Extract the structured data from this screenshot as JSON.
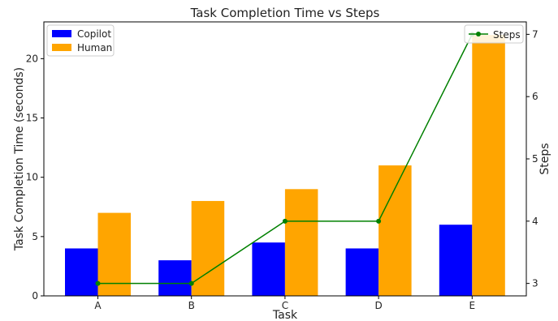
{
  "chart_data": {
    "type": "bar",
    "title": "Task Completion Time vs Steps",
    "xlabel": "Task",
    "ylabel": "Task Completion Time (seconds)",
    "y2label": "Steps",
    "categories": [
      "A",
      "B",
      "C",
      "D",
      "E"
    ],
    "series": [
      {
        "name": "Copilot",
        "type": "bar",
        "axis": "left",
        "color": "#0000ff",
        "values": [
          4,
          3,
          4.5,
          4,
          6
        ]
      },
      {
        "name": "Human",
        "type": "bar",
        "axis": "left",
        "color": "#ffa500",
        "values": [
          7,
          8,
          9,
          11,
          22
        ]
      },
      {
        "name": "Steps",
        "type": "line",
        "axis": "right",
        "color": "#008000",
        "values": [
          3,
          3,
          4,
          4,
          7
        ]
      }
    ],
    "ylim": [
      0,
      23.1
    ],
    "yticks": [
      "0",
      "5",
      "10",
      "15",
      "20"
    ],
    "y2lim": [
      2.8,
      7.2
    ],
    "y2ticks": [
      "3",
      "4",
      "5",
      "6",
      "7"
    ],
    "grid": false,
    "legend_left_placement": "top-left",
    "legend_right_placement": "top-right"
  }
}
